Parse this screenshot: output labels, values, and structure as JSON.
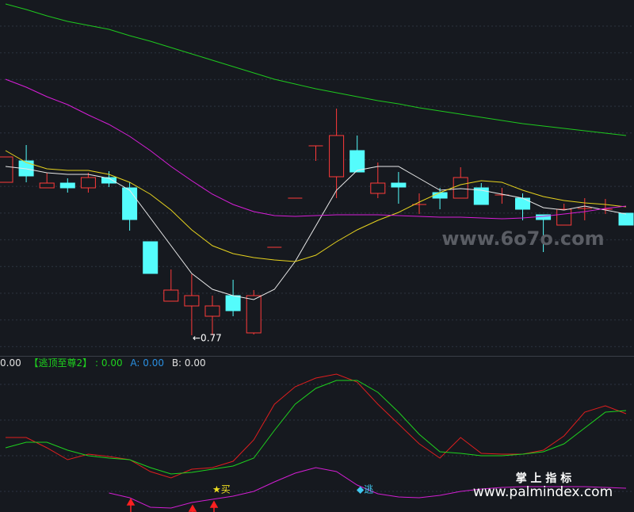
{
  "chart_data": [
    {
      "type": "candlestick",
      "open": [
        0.963,
        0.99,
        0.956,
        0.962,
        0.956,
        0.969,
        0.956,
        0.888,
        0.813,
        0.807,
        0.794,
        0.82,
        0.773,
        0.881,
        0.943,
        1.009,
        0.97,
        1.003,
        0.949,
        0.962,
        0.935,
        0.95,
        0.943,
        0.956,
        0.947,
        0.943,
        0.922,
        0.909,
        0.93,
        0.929,
        0.924
      ],
      "close": [
        0.995,
        0.971,
        0.962,
        0.956,
        0.969,
        0.962,
        0.916,
        0.848,
        0.827,
        0.82,
        0.807,
        0.801,
        0.82,
        0.881,
        0.943,
        1.009,
        1.022,
        0.976,
        0.962,
        0.957,
        0.935,
        0.943,
        0.969,
        0.935,
        0.947,
        0.929,
        0.916,
        0.929,
        0.93,
        0.929,
        0.909
      ],
      "high": [
        0.995,
        1.01,
        0.975,
        0.968,
        0.975,
        0.977,
        0.963,
        0.888,
        0.853,
        0.847,
        0.82,
        0.84,
        0.827,
        0.881,
        0.943,
        1.009,
        1.056,
        1.022,
        0.988,
        0.976,
        0.949,
        0.956,
        0.982,
        0.962,
        0.956,
        0.949,
        0.922,
        0.936,
        0.943,
        0.942,
        0.924
      ],
      "low": [
        0.963,
        0.963,
        0.956,
        0.95,
        0.95,
        0.957,
        0.902,
        0.848,
        0.813,
        0.77,
        0.77,
        0.794,
        0.771,
        0.881,
        0.943,
        0.99,
        0.943,
        0.976,
        0.943,
        0.936,
        0.923,
        0.929,
        0.943,
        0.935,
        0.936,
        0.915,
        0.875,
        0.909,
        0.915,
        0.923,
        0.909
      ],
      "up_color": "#ff3a3a",
      "down_color": "#54fcfc",
      "series": [
        {
          "color": "#e8e8e8",
          "values": [
            0.983,
            0.98,
            0.975,
            0.973,
            0.973,
            0.968,
            0.953,
            0.918,
            0.883,
            0.848,
            0.828,
            0.82,
            0.815,
            0.828,
            0.863,
            0.908,
            0.953,
            0.978,
            0.983,
            0.983,
            0.968,
            0.953,
            0.955,
            0.953,
            0.948,
            0.943,
            0.931,
            0.928,
            0.933,
            0.928,
            0.923
          ]
        },
        {
          "color": "#e6d21e",
          "values": [
            1.003,
            0.988,
            0.98,
            0.978,
            0.978,
            0.973,
            0.963,
            0.948,
            0.928,
            0.903,
            0.883,
            0.873,
            0.868,
            0.865,
            0.863,
            0.871,
            0.888,
            0.903,
            0.915,
            0.925,
            0.938,
            0.95,
            0.96,
            0.965,
            0.963,
            0.953,
            0.945,
            0.94,
            0.937,
            0.935,
            0.932
          ]
        },
        {
          "color": "#d81ed8",
          "values": [
            1.093,
            1.083,
            1.071,
            1.061,
            1.048,
            1.036,
            1.021,
            1.003,
            0.983,
            0.965,
            0.948,
            0.935,
            0.926,
            0.921,
            0.92,
            0.921,
            0.922,
            0.922,
            0.922,
            0.921,
            0.92,
            0.919,
            0.919,
            0.918,
            0.917,
            0.918,
            0.92,
            0.923,
            0.926,
            0.93,
            0.933
          ]
        },
        {
          "color": "#1ec81e",
          "values": [
            1.188,
            1.181,
            1.173,
            1.166,
            1.161,
            1.156,
            1.148,
            1.141,
            1.133,
            1.125,
            1.117,
            1.109,
            1.101,
            1.093,
            1.087,
            1.081,
            1.076,
            1.071,
            1.066,
            1.062,
            1.057,
            1.053,
            1.049,
            1.045,
            1.041,
            1.037,
            1.034,
            1.031,
            1.028,
            1.025,
            1.022
          ]
        }
      ],
      "ylim": [
        0.743,
        1.193
      ],
      "low_label": "←0.77",
      "watermark": "www.6o7o.com"
    },
    {
      "type": "line",
      "header": [
        "0.00",
        "【逃顶至尊2】",
        ": 0.00",
        "A: 0.00",
        "B: 0.00"
      ],
      "series": [
        {
          "color": "#e01e1e",
          "values": [
            88,
            88,
            75,
            60,
            67,
            64,
            60,
            45,
            37,
            48,
            50,
            58,
            85,
            130,
            152,
            163,
            168,
            158,
            130,
            105,
            80,
            62,
            88,
            68,
            67,
            67,
            72,
            90,
            120,
            128,
            118
          ]
        },
        {
          "color": "#1ed21e",
          "values": [
            75,
            82,
            82,
            72,
            65,
            62,
            60,
            50,
            42,
            44,
            48,
            52,
            62,
            97,
            130,
            150,
            160,
            160,
            145,
            120,
            92,
            70,
            68,
            65,
            65,
            67,
            70,
            80,
            100,
            120,
            122
          ]
        },
        {
          "color": "#d21ed2",
          "values": [
            null,
            null,
            null,
            null,
            null,
            18,
            12,
            0,
            -1,
            6,
            10,
            14,
            20,
            32,
            43,
            50,
            45,
            28,
            17,
            13,
            12,
            15,
            20,
            23,
            25,
            26,
            26,
            26,
            26,
            25,
            24
          ]
        }
      ],
      "ylim": [
        -6,
        170
      ],
      "buy_label": "★买",
      "escape_label": "◆逃",
      "watermark_title": "掌 上 指 标",
      "watermark_url": "www.palmindex.com"
    }
  ]
}
